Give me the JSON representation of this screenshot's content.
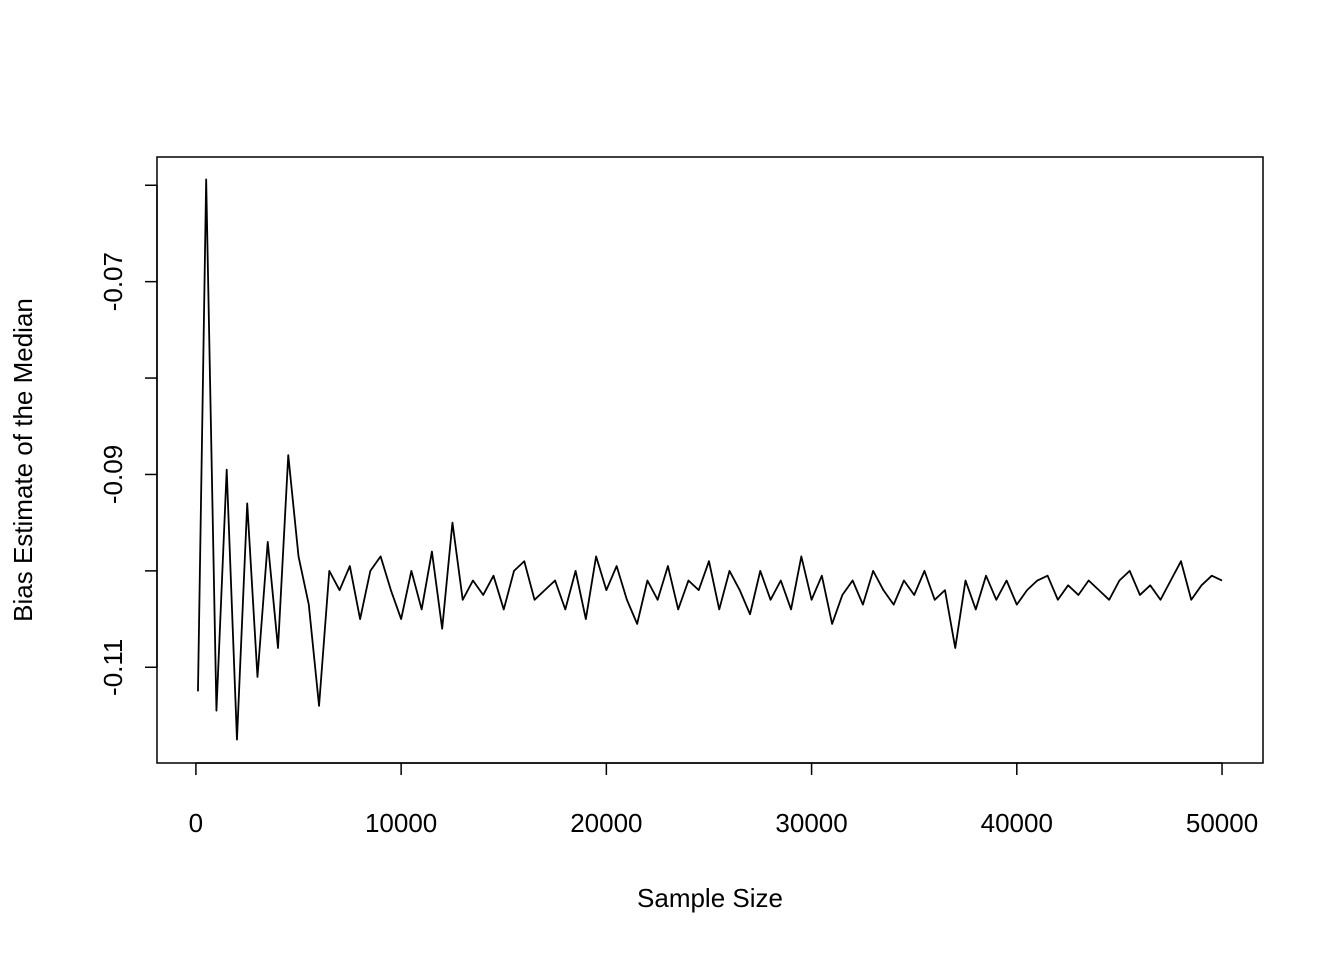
{
  "chart_data": {
    "type": "line",
    "xlabel": "Sample Size",
    "ylabel": "Bias Estimate of the Median",
    "x": [
      100,
      500,
      1000,
      1500,
      2000,
      2500,
      3000,
      3500,
      4000,
      4500,
      5000,
      5500,
      6000,
      6500,
      7000,
      7500,
      8000,
      8500,
      9000,
      9500,
      10000,
      10500,
      11000,
      11500,
      12000,
      12500,
      13000,
      13500,
      14000,
      14500,
      15000,
      15500,
      16000,
      16500,
      17000,
      17500,
      18000,
      18500,
      19000,
      19500,
      20000,
      20500,
      21000,
      21500,
      22000,
      22500,
      23000,
      23500,
      24000,
      24500,
      25000,
      25500,
      26000,
      26500,
      27000,
      27500,
      28000,
      28500,
      29000,
      29500,
      30000,
      30500,
      31000,
      31500,
      32000,
      32500,
      33000,
      33500,
      34000,
      34500,
      35000,
      35500,
      36000,
      36500,
      37000,
      37500,
      38000,
      38500,
      39000,
      39500,
      40000,
      40500,
      41000,
      41500,
      42000,
      42500,
      43000,
      43500,
      44000,
      44500,
      45000,
      45500,
      46000,
      46500,
      47000,
      47500,
      48000,
      48500,
      49000,
      49500,
      50000
    ],
    "series": [
      {
        "color": "#000000",
        "values": [
          -0.1125,
          -0.0594,
          -0.1145,
          -0.0895,
          -0.1175,
          -0.093,
          -0.111,
          -0.097,
          -0.108,
          -0.088,
          -0.0985,
          -0.1035,
          -0.114,
          -0.1,
          -0.102,
          -0.0995,
          -0.105,
          -0.1,
          -0.0985,
          -0.102,
          -0.105,
          -0.1,
          -0.104,
          -0.098,
          -0.106,
          -0.095,
          -0.103,
          -0.101,
          -0.1025,
          -0.1005,
          -0.104,
          -0.1,
          -0.099,
          -0.103,
          -0.102,
          -0.101,
          -0.104,
          -0.1,
          -0.105,
          -0.0985,
          -0.102,
          -0.0995,
          -0.103,
          -0.1055,
          -0.101,
          -0.103,
          -0.0995,
          -0.104,
          -0.101,
          -0.102,
          -0.099,
          -0.104,
          -0.1,
          -0.102,
          -0.1045,
          -0.1,
          -0.103,
          -0.101,
          -0.104,
          -0.0985,
          -0.103,
          -0.1005,
          -0.1055,
          -0.1025,
          -0.101,
          -0.1035,
          -0.1,
          -0.102,
          -0.1035,
          -0.101,
          -0.1025,
          -0.1,
          -0.103,
          -0.102,
          -0.108,
          -0.101,
          -0.104,
          -0.1005,
          -0.103,
          -0.101,
          -0.1035,
          -0.102,
          -0.101,
          -0.1005,
          -0.103,
          -0.1015,
          -0.1025,
          -0.101,
          -0.102,
          -0.103,
          -0.101,
          -0.1,
          -0.1025,
          -0.1015,
          -0.103,
          -0.101,
          -0.099,
          -0.103,
          -0.1015,
          -0.1005,
          -0.101
        ]
      }
    ],
    "xlim": [
      -1896,
      51996
    ],
    "ylim": [
      -0.11993,
      -0.05707
    ],
    "xticks": [
      0,
      10000,
      20000,
      30000,
      40000,
      50000
    ],
    "yticks": [
      -0.11,
      -0.09,
      -0.07
    ],
    "yminor_ticks": [
      -0.1,
      -0.08,
      -0.06
    ]
  }
}
